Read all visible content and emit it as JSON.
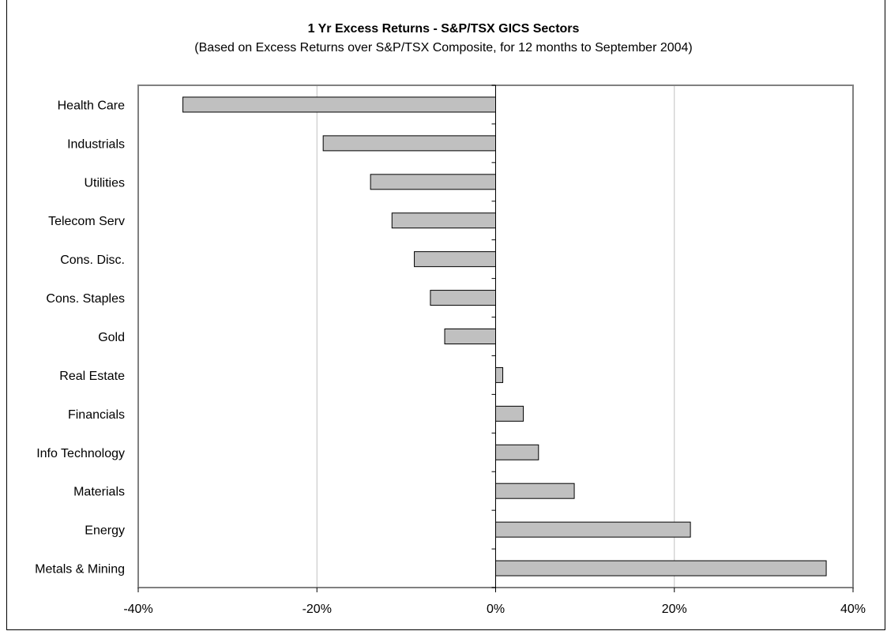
{
  "chart_data": {
    "type": "bar",
    "orientation": "horizontal",
    "title": "1 Yr Excess Returns - S&P/TSX GICS Sectors",
    "subtitle": "(Based on Excess Returns over S&P/TSX Composite, for 12 months to September 2004)",
    "categories": [
      "Health Care",
      "Industrials",
      "Utilities",
      "Telecom Serv",
      "Cons. Disc.",
      "Cons. Staples",
      "Gold",
      "Real Estate",
      "Financials",
      "Info Technology",
      "Materials",
      "Energy",
      "Metals & Mining"
    ],
    "values": [
      -35.0,
      -19.3,
      -14.0,
      -11.6,
      -9.1,
      -7.3,
      -5.7,
      0.8,
      3.1,
      4.8,
      8.8,
      21.8,
      37.0
    ],
    "xlim": [
      -40,
      40
    ],
    "xticks": [
      -40,
      -20,
      0,
      20,
      40
    ],
    "xtick_labels": [
      "-40%",
      "-20%",
      "0%",
      "20%",
      "40%"
    ],
    "grid": "vertical",
    "bar_color": "#c0c0c0",
    "bar_edge_color": "#000000",
    "grid_color": "#c0c0c0",
    "axis_color": "#808080"
  }
}
